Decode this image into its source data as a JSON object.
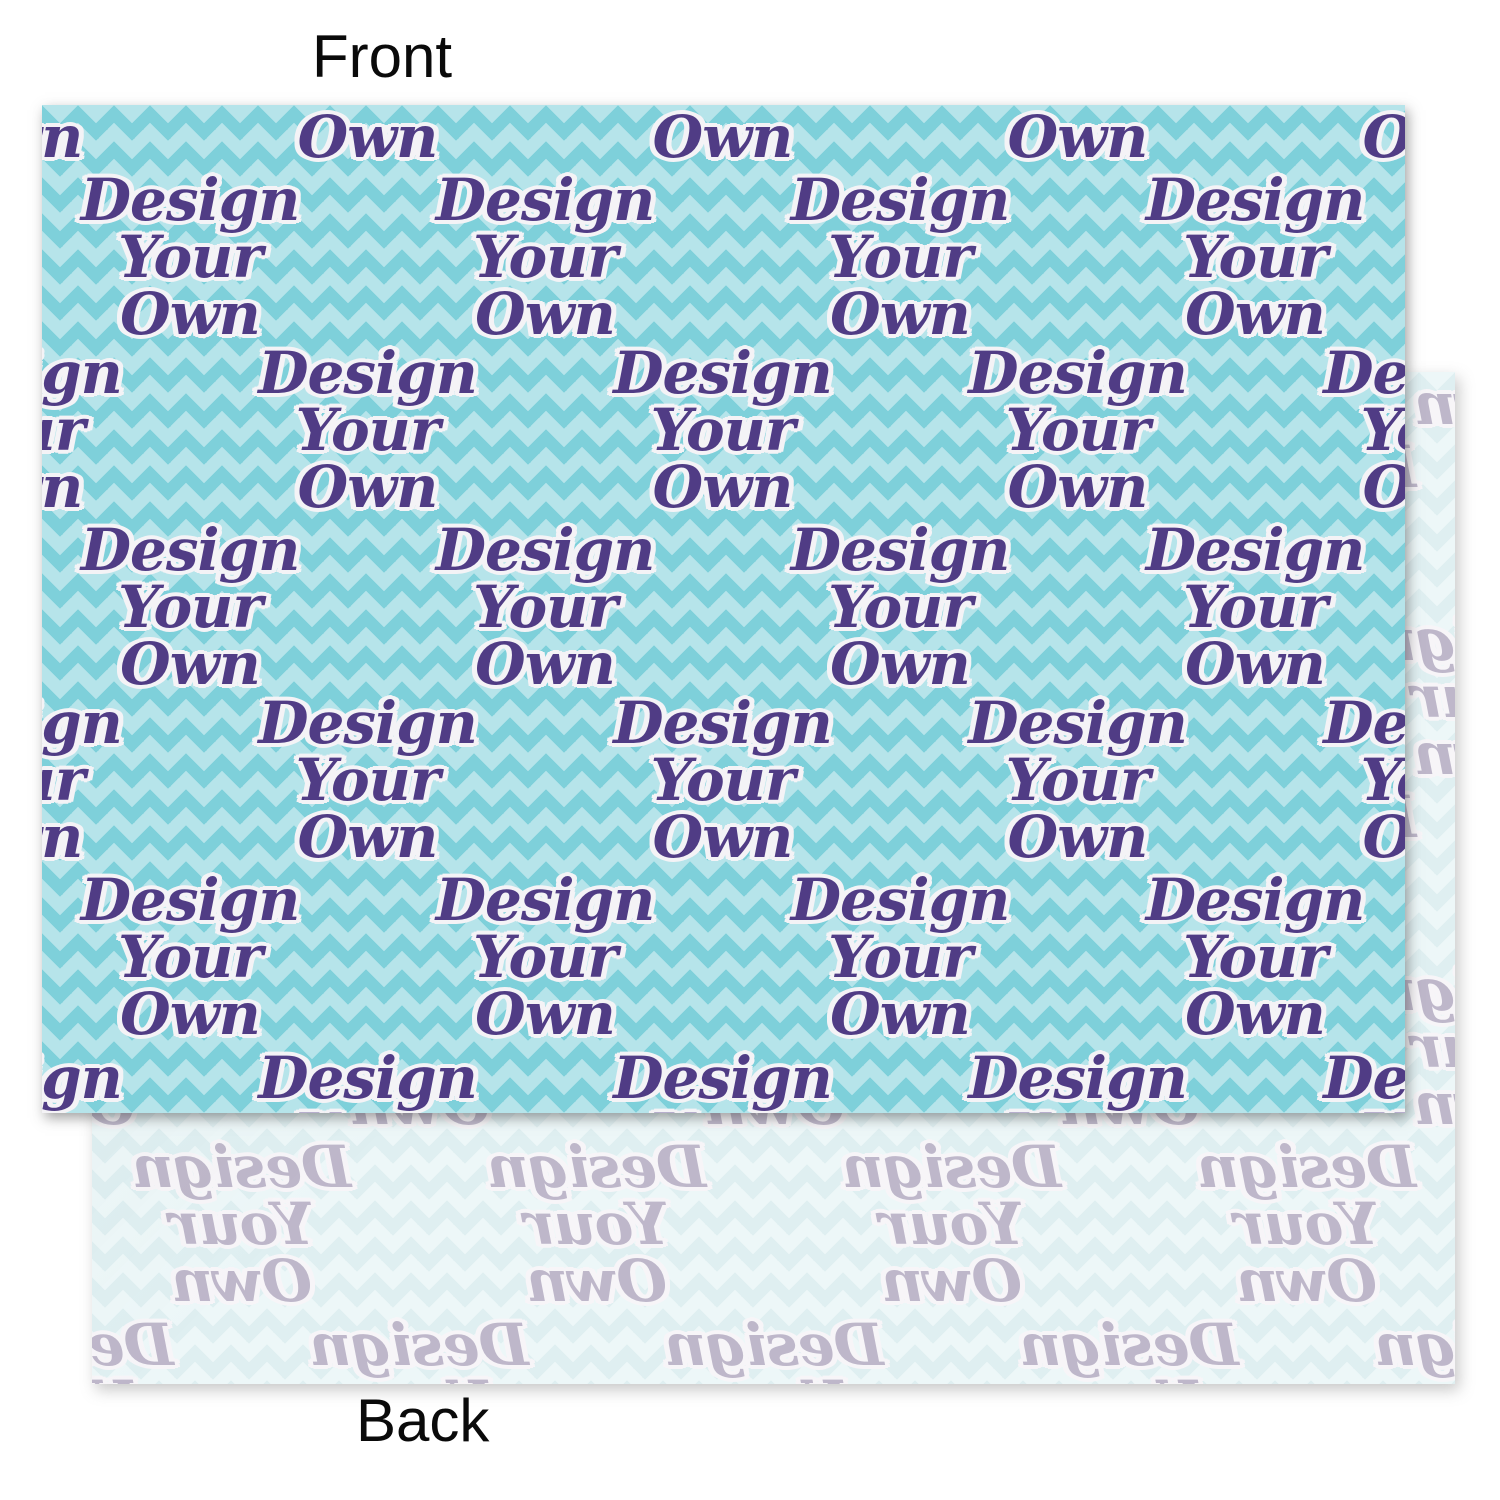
{
  "labels": {
    "front": "Front",
    "back": "Back"
  },
  "pattern": {
    "words": [
      "Design",
      "Your",
      "Own"
    ],
    "back_is_mirrored": true
  },
  "colors": {
    "front_teal_base": "#7ed0da",
    "front_teal_stripe": "#b6e4ea",
    "front_text_purple": "#503c85",
    "front_text_outline": "#f4f3f6",
    "back_teal_base": "#dfeff1",
    "back_teal_stripe": "#edf7f8",
    "back_text_lavender": "#beb7ca",
    "back_text_outline": "#f7f5f8",
    "label_color": "#0a0a0a",
    "page_background": "#ffffff"
  }
}
